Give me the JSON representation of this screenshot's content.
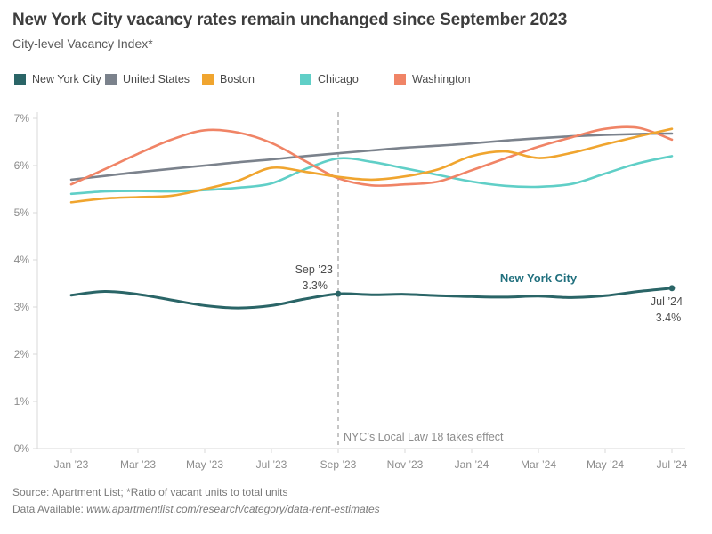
{
  "header": {
    "title": "New York City vacancy rates remain unchanged since September 2023",
    "subtitle": "City-level Vacancy Index*"
  },
  "legend": {
    "items": [
      {
        "label": "New York City",
        "color": "#2a6567"
      },
      {
        "label": "United States",
        "color": "#7b828c"
      },
      {
        "label": "Boston",
        "color": "#f0a52f"
      },
      {
        "label": "Chicago",
        "color": "#60cfc7"
      },
      {
        "label": "Washington",
        "color": "#f08466"
      }
    ]
  },
  "chart_data": {
    "type": "line",
    "title": "New York City vacancy rates remain unchanged since September 2023",
    "subtitle": "City-level Vacancy Index*",
    "x": [
      "Jan ’23",
      "Feb ’23",
      "Mar ’23",
      "Apr ’23",
      "May ’23",
      "Jun ’23",
      "Jul ’23",
      "Aug ’23",
      "Sep ’23",
      "Oct ’23",
      "Nov ’23",
      "Dec ’23",
      "Jan ’24",
      "Feb ’24",
      "Mar ’24",
      "Apr ’24",
      "May ’24",
      "Jun ’24",
      "Jul ’24"
    ],
    "x_tick_labels": [
      "Jan ’23",
      "Mar ’23",
      "May ’23",
      "Jul ’23",
      "Sep ’23",
      "Nov ’23",
      "Jan ’24",
      "Mar ’24",
      "May ’24",
      "Jul ’24"
    ],
    "y_ticks": [
      "0%",
      "1%",
      "2%",
      "3%",
      "4%",
      "5%",
      "6%",
      "7%"
    ],
    "ylim": [
      0,
      7
    ],
    "grid": false,
    "legend_position": "top",
    "series": [
      {
        "name": "United States",
        "color": "#7b828c",
        "width": 2.6,
        "values": [
          5.7,
          5.78,
          5.86,
          5.93,
          6.0,
          6.07,
          6.13,
          6.2,
          6.26,
          6.32,
          6.38,
          6.42,
          6.47,
          6.53,
          6.58,
          6.62,
          6.65,
          6.67,
          6.68
        ]
      },
      {
        "name": "Chicago",
        "color": "#60cfc7",
        "width": 2.6,
        "values": [
          5.4,
          5.45,
          5.46,
          5.45,
          5.48,
          5.53,
          5.62,
          5.92,
          6.15,
          6.08,
          5.94,
          5.8,
          5.66,
          5.57,
          5.55,
          5.61,
          5.83,
          6.05,
          6.2
        ]
      },
      {
        "name": "Washington",
        "color": "#f08466",
        "width": 2.6,
        "values": [
          5.6,
          5.92,
          6.25,
          6.55,
          6.75,
          6.7,
          6.48,
          6.1,
          5.73,
          5.58,
          5.6,
          5.66,
          5.9,
          6.15,
          6.4,
          6.6,
          6.78,
          6.8,
          6.55
        ]
      },
      {
        "name": "Boston",
        "color": "#f0a52f",
        "width": 2.6,
        "values": [
          5.22,
          5.3,
          5.33,
          5.36,
          5.5,
          5.68,
          5.95,
          5.87,
          5.76,
          5.7,
          5.77,
          5.92,
          6.2,
          6.3,
          6.16,
          6.27,
          6.45,
          6.62,
          6.78
        ]
      },
      {
        "name": "New York City",
        "color": "#2a6567",
        "width": 3,
        "values": [
          3.25,
          3.33,
          3.27,
          3.15,
          3.03,
          2.98,
          3.03,
          3.17,
          3.28,
          3.26,
          3.27,
          3.24,
          3.22,
          3.21,
          3.23,
          3.2,
          3.24,
          3.33,
          3.4
        ]
      }
    ],
    "markers": [
      {
        "series": "New York City",
        "x_index": 8,
        "value": 3.28
      },
      {
        "series": "New York City",
        "x_index": 18,
        "value": 3.4
      }
    ],
    "reference_line": {
      "x_index": 8,
      "style": "dashed",
      "label": "NYC’s Local Law 18 takes effect"
    },
    "annotations": [
      {
        "id": "sep-callout",
        "lines": [
          "Sep ’23",
          "3.3%"
        ],
        "color": "#4d4d4d"
      },
      {
        "id": "series-label-nyc",
        "text": "New York City",
        "color": "#21707e"
      },
      {
        "id": "jul-callout",
        "lines": [
          "Jul ’24",
          "3.4%"
        ],
        "color": "#4d4d4d"
      }
    ]
  },
  "footer": {
    "source": "Source: Apartment List; *Ratio of vacant units to total units",
    "data_available_label": "Data Available: ",
    "data_available_url": "www.apartmentlist.com/research/category/data-rent-estimates"
  }
}
